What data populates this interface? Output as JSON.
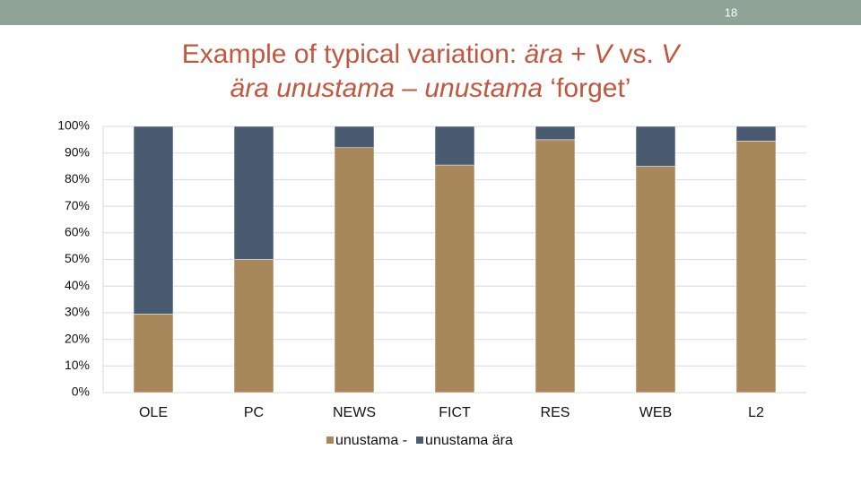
{
  "slide_number": "18",
  "chart_data": {
    "type": "stacked_bar",
    "title_lines": [
      [
        {
          "text": "Example of typical variation: ",
          "italic": false
        },
        {
          "text": "ära",
          "italic": true
        },
        {
          "text": " + ",
          "italic": false
        },
        {
          "text": "V",
          "italic": true
        },
        {
          "text": " vs. ",
          "italic": false
        },
        {
          "text": "V",
          "italic": true
        }
      ],
      [
        {
          "text": "ära unustama – unustama",
          "italic": true
        },
        {
          "text": " ‘forget’",
          "italic": false
        }
      ]
    ],
    "categories": [
      "OLE",
      "PC",
      "NEWS",
      "FICT",
      "RES",
      "WEB",
      "L2"
    ],
    "series": [
      {
        "name": "unustama -",
        "color": "#a8875b",
        "values": [
          29.5,
          50,
          92,
          85.5,
          95,
          85,
          94.5
        ]
      },
      {
        "name": "unustama ära",
        "color": "#4a5a70",
        "values": [
          70.5,
          50,
          8,
          14.5,
          5,
          15,
          5.5
        ]
      }
    ],
    "ylim": [
      0,
      100
    ],
    "yticks": [
      {
        "value": 0,
        "label": "0%"
      },
      {
        "value": 10,
        "label": "10%"
      },
      {
        "value": 20,
        "label": "20%"
      },
      {
        "value": 30,
        "label": "30%"
      },
      {
        "value": 40,
        "label": "40%"
      },
      {
        "value": 50,
        "label": "50%"
      },
      {
        "value": 60,
        "label": "60%"
      },
      {
        "value": 70,
        "label": "70%"
      },
      {
        "value": 80,
        "label": "80%"
      },
      {
        "value": 90,
        "label": "90%"
      },
      {
        "value": 100,
        "label": "100%"
      }
    ],
    "grid": true,
    "legend": "bottom"
  }
}
